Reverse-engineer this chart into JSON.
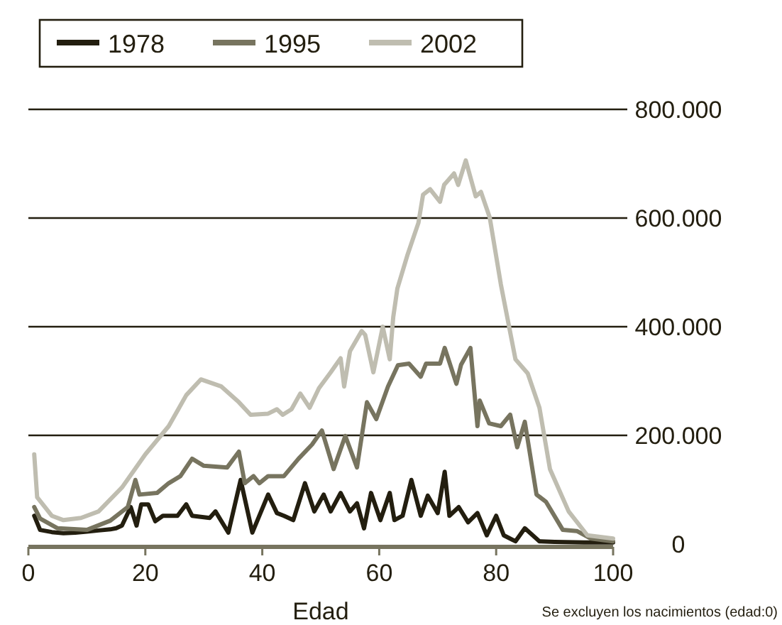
{
  "chart_data": {
    "type": "line",
    "xlabel": "Edad",
    "annotations": [
      "Se excluyen los nacimientos (edad:0)"
    ],
    "xlim": [
      0,
      100
    ],
    "xticks": [
      0,
      20,
      40,
      60,
      80,
      100
    ],
    "ylim": [
      0,
      800000
    ],
    "yticks": [
      0,
      {
        "value": 200000,
        "label": "200.000"
      },
      {
        "value": 400000,
        "label": "400.000"
      },
      {
        "value": 600000,
        "label": "600.000"
      },
      {
        "value": 800000,
        "label": "800.000"
      }
    ],
    "grid": "y",
    "legend": "top",
    "line_style": "solid",
    "marker": "none",
    "series": [
      {
        "name": "1978",
        "color": "#231e0f",
        "x": [
          1,
          2,
          4,
          6,
          8,
          10,
          12,
          14,
          15,
          16,
          17.5,
          18.5,
          19.3,
          20.5,
          21.7,
          23,
          25.5,
          27,
          28,
          31,
          32,
          34.2,
          36.3,
          38.3,
          41,
          42.5,
          43.7,
          45.3,
          47.3,
          48.9,
          50.5,
          51.7,
          53.4,
          55,
          56.2,
          57.4,
          58.6,
          60.2,
          61.8,
          62.6,
          64,
          65.5,
          67.1,
          68.3,
          70,
          71.2,
          72,
          73.6,
          75.2,
          76.8,
          78.4,
          80,
          81.3,
          83.3,
          84.9,
          87.4,
          90,
          95,
          100
        ],
        "values": [
          52000,
          26000,
          22000,
          20000,
          21000,
          23000,
          25000,
          27000,
          29000,
          34000,
          68000,
          34000,
          73000,
          73000,
          42000,
          52000,
          52000,
          73000,
          52000,
          48000,
          60000,
          21000,
          118000,
          21000,
          91000,
          57000,
          52000,
          44000,
          112000,
          60000,
          91000,
          60000,
          94000,
          60000,
          75000,
          29000,
          94000,
          44000,
          94000,
          44000,
          52000,
          118000,
          52000,
          89000,
          57000,
          133000,
          52000,
          68000,
          40000,
          57000,
          16000,
          52000,
          16000,
          5000,
          29000,
          5000,
          4000,
          3000,
          3000
        ]
      },
      {
        "name": "1995",
        "color": "#77745f",
        "x": [
          1,
          2,
          5,
          10,
          14,
          17,
          18.3,
          19,
          22,
          24,
          26,
          28,
          30,
          34,
          36,
          37,
          38.5,
          39.5,
          41,
          43.7,
          46.2,
          48.5,
          50.2,
          52.2,
          54.2,
          56.2,
          57.9,
          59.5,
          61.5,
          63.2,
          65.1,
          67.1,
          68,
          70.4,
          71.2,
          73.2,
          74,
          75.6,
          76.8,
          77.2,
          78.8,
          80.8,
          82.4,
          83.6,
          84.9,
          86.9,
          88.5,
          91.4,
          93.8,
          96.2,
          100
        ],
        "values": [
          68000,
          47000,
          29000,
          26000,
          43000,
          68000,
          118000,
          91000,
          94000,
          112000,
          125000,
          157000,
          144000,
          141000,
          170000,
          112000,
          125000,
          112000,
          125000,
          125000,
          157000,
          183000,
          209000,
          138000,
          199000,
          141000,
          261000,
          230000,
          290000,
          329000,
          332000,
          308000,
          332000,
          332000,
          361000,
          295000,
          330000,
          361000,
          217000,
          264000,
          222000,
          217000,
          238000,
          178000,
          225000,
          91000,
          78000,
          26000,
          24000,
          10000,
          5000
        ]
      },
      {
        "name": "2002",
        "color": "#bfbdb0",
        "x": [
          1,
          1.5,
          4,
          6,
          9,
          12,
          16,
          20,
          24,
          27,
          29.5,
          33,
          36,
          38,
          41,
          42.5,
          43.5,
          45,
          46.5,
          48.1,
          49.7,
          51.7,
          53.4,
          54,
          55,
          57,
          57.6,
          59,
          60.6,
          61.8,
          62.4,
          63.1,
          64.8,
          66.7,
          67.5,
          68.7,
          70.4,
          71.1,
          72.8,
          73.5,
          74.8,
          76.5,
          77.4,
          78.9,
          80.8,
          83.3,
          85.4,
          87.4,
          89.2,
          92.4,
          95.6,
          100
        ],
        "values": [
          165000,
          86000,
          52000,
          44000,
          48000,
          60000,
          104000,
          165000,
          217000,
          274000,
          303000,
          290000,
          261000,
          238000,
          240000,
          248000,
          238000,
          248000,
          277000,
          251000,
          287000,
          316000,
          342000,
          290000,
          355000,
          392000,
          385000,
          316000,
          400000,
          340000,
          418000,
          470000,
          531000,
          591000,
          643000,
          653000,
          630000,
          661000,
          682000,
          661000,
          706000,
          640000,
          648000,
          601000,
          478000,
          340000,
          314000,
          251000,
          138000,
          60000,
          16000,
          10000
        ]
      }
    ]
  }
}
